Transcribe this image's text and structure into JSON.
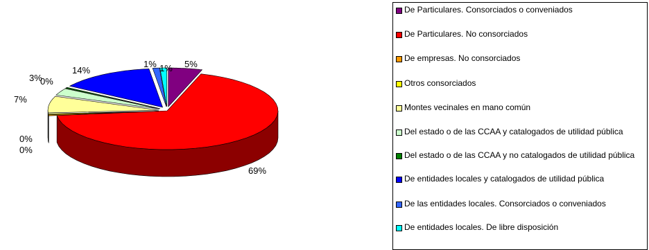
{
  "chart_data": {
    "type": "pie",
    "style": "3d-exploded",
    "legend_position": "right",
    "slices": [
      {
        "label": "De Particulares. Consorciados o conveniados",
        "value": 5,
        "value_label": "5%",
        "color": "#800080"
      },
      {
        "label": "De Particulares. No consorciados",
        "value": 69,
        "value_label": "69%",
        "color": "#ff0000"
      },
      {
        "label": "De empresas. No consorciados",
        "value": 0,
        "value_label": "0%",
        "color": "#ff9900"
      },
      {
        "label": "Otros consorciados",
        "value": 0,
        "value_label": "0%",
        "color": "#ffff00"
      },
      {
        "label": "Montes vecinales en mano común",
        "value": 7,
        "value_label": "7%",
        "color": "#ffff99"
      },
      {
        "label": "Del estado o de las CCAA y catalogados de utilidad pública",
        "value": 3,
        "value_label": "3%",
        "color": "#ccffcc"
      },
      {
        "label": "Del estado o de las CCAA y no catalogados de utilidad pública",
        "value": 0,
        "value_label": "0%",
        "color": "#008000"
      },
      {
        "label": "De entidades locales y catalogados de utilidad pública",
        "value": 14,
        "value_label": "14%",
        "color": "#0000ff"
      },
      {
        "label": "De las entidades locales. Consorciados o conveniados",
        "value": 1,
        "value_label": "1%",
        "color": "#3366ff"
      },
      {
        "label": "De entidades locales. De libre disposición",
        "value": 1,
        "value_label": "1%",
        "color": "#00ffff"
      }
    ]
  }
}
